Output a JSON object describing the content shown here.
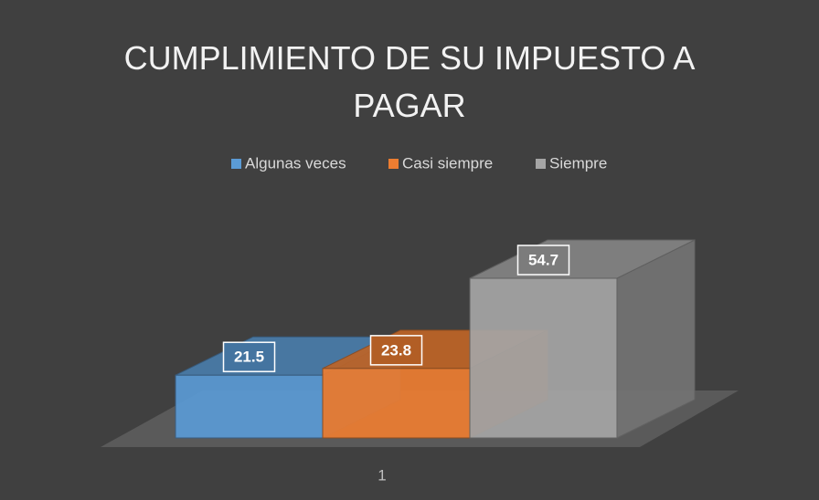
{
  "chart_data": {
    "type": "bar3d",
    "title": "CUMPLIMIENTO DE SU IMPUESTO A PAGAR",
    "categories": [
      "1"
    ],
    "series": [
      {
        "name": "Algunas veces",
        "color": "#5b9bd5",
        "values": [
          21.5
        ]
      },
      {
        "name": "Casi siempre",
        "color": "#ed7d31",
        "values": [
          23.8
        ]
      },
      {
        "name": "Siempre",
        "color": "#a5a5a5",
        "values": [
          54.7
        ]
      }
    ],
    "legend": "top"
  }
}
